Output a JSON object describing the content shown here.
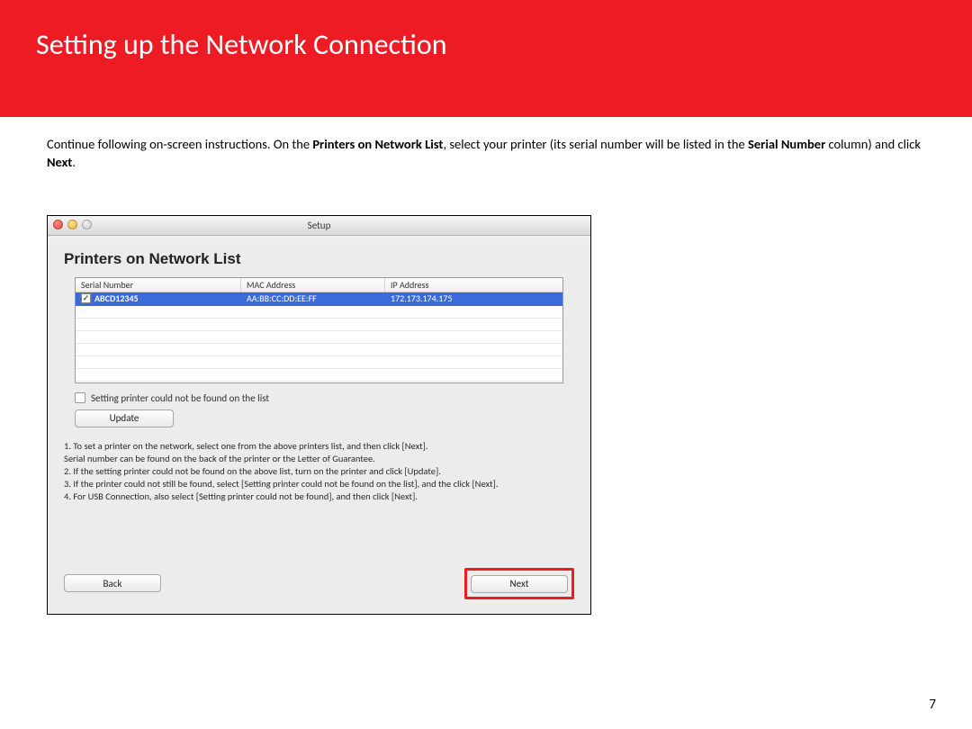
{
  "header": {
    "title": "Setting up the Network Connection",
    "bg_color": "#ed1c24",
    "title_color": "#ffffff"
  },
  "instruction": {
    "prefix": "Continue following on-screen instructions.  On the ",
    "bold1": "Printers on Network List",
    "mid": ", select your printer (its serial number will be listed in the ",
    "bold2": "Serial Number",
    "mid2": " column) and click ",
    "bold3": "Next",
    "suffix": "."
  },
  "dialog": {
    "window_title": "Setup",
    "heading": "Printers on Network List",
    "columns": {
      "serial": "Serial Number",
      "mac": "MAC Address",
      "ip": "IP Address"
    },
    "row": {
      "serial": "ABCD12345",
      "mac": "AA:BB:CC:DD:EE:FF",
      "ip": "172.173.174.175",
      "selected_bg": "#3b6bd8"
    },
    "notfound_label": "Setting printer could not be found on the list",
    "update_label": "Update",
    "instructions_text": "1. To set a printer on the network, select one from the above printers list, and then click [Next].\nSerial number can be found on the back of the printer or the Letter of Guarantee.\n2. If the setting printer could not be found on the above list, turn on the printer and click [Update].\n3. If the printer could not still be found, select [Setting printer could not be found on the list], and the click [Next].\n4. For USB Connection, also select [Setting printer could not be found], and then click [Next].",
    "back_label": "Back",
    "next_label": "Next",
    "highlight_color": "#ed1c24"
  },
  "page_number": "7"
}
